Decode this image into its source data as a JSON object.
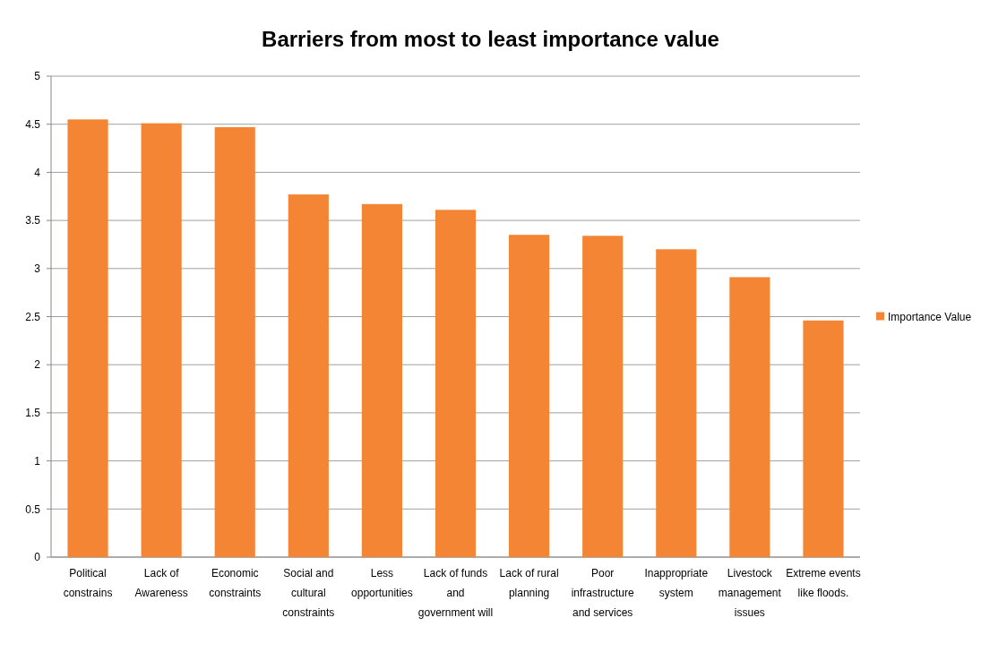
{
  "chart_data": {
    "type": "bar",
    "title": "Barriers from most to least importance value",
    "categories": [
      "Political constrains",
      "Lack of Awareness",
      "Economic constraints",
      "Social and cultural constraints",
      "Less opportunities",
      "Lack of funds and government will",
      "Lack of rural planning",
      "Poor infrastructure and services",
      "Inappropriate system",
      "Livestock management issues",
      "Extreme events like floods."
    ],
    "series": [
      {
        "name": "Importance Value",
        "color": "#f38535",
        "values": [
          4.55,
          4.51,
          4.47,
          3.77,
          3.67,
          3.61,
          3.35,
          3.34,
          3.2,
          2.91,
          2.46
        ]
      }
    ],
    "ylim": [
      0,
      5
    ],
    "yticks": [
      0,
      0.5,
      1,
      1.5,
      2,
      2.5,
      3,
      3.5,
      4,
      4.5,
      5
    ],
    "grid": "y",
    "legend": "right"
  }
}
